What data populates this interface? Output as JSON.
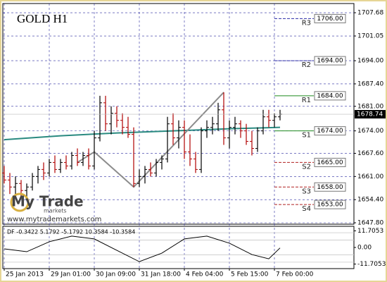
{
  "watermark": {
    "brand": "My Trade",
    "sub": "markets",
    "url": "www.mytrademarkets.com"
  },
  "chart_data": [
    {
      "type": "ohlc",
      "title": "GOLD H1",
      "ylim": [
        1647.4,
        1710.3
      ],
      "yticks": [
        1707.68,
        1701.05,
        {
          "value": 1694,
          "label": "1694.00"
        },
        {
          "value": 1687.4,
          "label": "1687.40"
        },
        {
          "value": 1681,
          "label": "1681.00"
        },
        {
          "value": 1674,
          "label": "1674.00"
        },
        {
          "value": 1667.6,
          "label": "1667.60"
        },
        {
          "value": 1661,
          "label": "1661.00"
        },
        {
          "value": 1654.4,
          "label": "1654.40"
        },
        {
          "value": 1647.8,
          "label": "1647.80"
        }
      ],
      "grid": true,
      "up_color": "#000000",
      "down_color": "#b00000",
      "categories": [
        "25 Jan 2013",
        null,
        null,
        null,
        null,
        null,
        null,
        null,
        "29 Jan 01:00",
        null,
        null,
        null,
        null,
        null,
        null,
        null,
        "30 Jan 09:00",
        null,
        null,
        null,
        null,
        null,
        null,
        null,
        "31 Jan 18:00",
        null,
        null,
        null,
        null,
        null,
        null,
        null,
        "4 Feb 04:00",
        null,
        null,
        null,
        null,
        null,
        null,
        null,
        "5 Feb 15:00",
        null,
        null,
        null,
        null,
        null,
        null,
        null,
        "7 Feb 00:00",
        null
      ],
      "bars": [
        [
          1662,
          1664,
          1659,
          1660
        ],
        [
          1660,
          1662,
          1656,
          1658
        ],
        [
          1658,
          1661,
          1656,
          1659
        ],
        [
          1659,
          1660,
          1655,
          1657
        ],
        [
          1657,
          1659,
          1655,
          1658
        ],
        [
          1658,
          1662,
          1657,
          1661
        ],
        [
          1661,
          1664,
          1659,
          1663
        ],
        [
          1663,
          1665,
          1660,
          1662
        ],
        [
          1662,
          1666,
          1661,
          1665
        ],
        [
          1665,
          1667,
          1662,
          1663
        ],
        [
          1663,
          1666,
          1662,
          1665
        ],
        [
          1665,
          1667,
          1663,
          1664
        ],
        [
          1664,
          1668,
          1663,
          1667
        ],
        [
          1667,
          1669,
          1664,
          1665
        ],
        [
          1665,
          1668,
          1664,
          1667
        ],
        [
          1667,
          1669,
          1663,
          1664
        ],
        [
          1664,
          1674,
          1663,
          1672
        ],
        [
          1672,
          1684,
          1671,
          1682
        ],
        [
          1682,
          1684,
          1674,
          1676
        ],
        [
          1676,
          1681,
          1673,
          1679
        ],
        [
          1679,
          1681,
          1675,
          1677
        ],
        [
          1677,
          1679,
          1673,
          1675
        ],
        [
          1675,
          1678,
          1672,
          1673
        ],
        [
          1673,
          1675,
          1658,
          1659
        ],
        [
          1659,
          1663,
          1658,
          1661
        ],
        [
          1661,
          1664,
          1659,
          1663
        ],
        [
          1663,
          1665,
          1661,
          1662
        ],
        [
          1662,
          1666,
          1661,
          1665
        ],
        [
          1665,
          1667,
          1663,
          1666
        ],
        [
          1666,
          1678,
          1665,
          1676
        ],
        [
          1676,
          1679,
          1670,
          1672
        ],
        [
          1672,
          1677,
          1669,
          1675
        ],
        [
          1675,
          1677,
          1666,
          1668
        ],
        [
          1668,
          1673,
          1664,
          1666
        ],
        [
          1666,
          1668,
          1662,
          1663
        ],
        [
          1663,
          1675,
          1662,
          1674
        ],
        [
          1674,
          1677,
          1672,
          1675
        ],
        [
          1675,
          1678,
          1673,
          1676
        ],
        [
          1676,
          1682,
          1674,
          1680
        ],
        [
          1680,
          1685,
          1670,
          1672
        ],
        [
          1672,
          1677,
          1669,
          1675
        ],
        [
          1675,
          1678,
          1673,
          1676
        ],
        [
          1676,
          1677,
          1672,
          1674
        ],
        [
          1674,
          1676,
          1670,
          1671
        ],
        [
          1671,
          1674,
          1667,
          1669
        ],
        [
          1669,
          1675,
          1668,
          1674
        ],
        [
          1674,
          1680,
          1673,
          1678
        ],
        [
          1678,
          1680,
          1675,
          1677
        ],
        [
          1677,
          1679,
          1675,
          1678
        ],
        [
          1678,
          1680,
          1677,
          1678.74
        ]
      ],
      "current_price": 1678.74,
      "moving_average": {
        "color": "#2a8a80",
        "x": [
          0,
          10,
          20,
          30,
          40,
          49
        ],
        "values": [
          1671.5,
          1672.6,
          1673.4,
          1674,
          1674.6,
          1675
        ]
      },
      "zigzag": {
        "color": "#8c8c8c",
        "x": [
          13,
          16,
          23,
          39
        ],
        "values": [
          1665,
          1668,
          1658,
          1685
        ]
      },
      "pivots": {
        "names": [
          "R3",
          "R2",
          "R1",
          "S1",
          "S2",
          "S3",
          "S4"
        ],
        "values": [
          1706,
          1694,
          1684,
          1674,
          1665,
          1658,
          1653
        ],
        "value_labels": [
          "1706.00",
          "1694.00",
          "1684.00",
          "1674.00",
          "1665.00",
          "1658.00",
          "1653.00"
        ],
        "colors": [
          "#2a2aa8",
          "#2a2aa8",
          "#1f8a1f",
          "#1f8a1f",
          "#b02020",
          "#b02020",
          "#b02020"
        ]
      }
    },
    {
      "type": "line",
      "legend": "DF -0.3422 5.1792 -5.1792 10.3584 -10.3584",
      "ylim": [
        -14.9,
        14.9
      ],
      "yticks": [
        11.7053,
        {
          "value": 0,
          "label": "0.00"
        },
        -11.7053
      ],
      "levels": [
        10.3584,
        5.1792,
        -5.1792,
        -10.3584
      ],
      "series": [
        {
          "color": "#000000",
          "x": [
            0,
            4,
            8,
            12,
            16,
            20,
            24,
            28,
            32,
            36,
            40,
            44,
            47,
            49
          ],
          "values": [
            -1,
            -3,
            4,
            8,
            6,
            -2,
            -10,
            -4,
            6,
            8,
            3,
            -5,
            -8,
            -0.3422
          ]
        }
      ]
    }
  ]
}
